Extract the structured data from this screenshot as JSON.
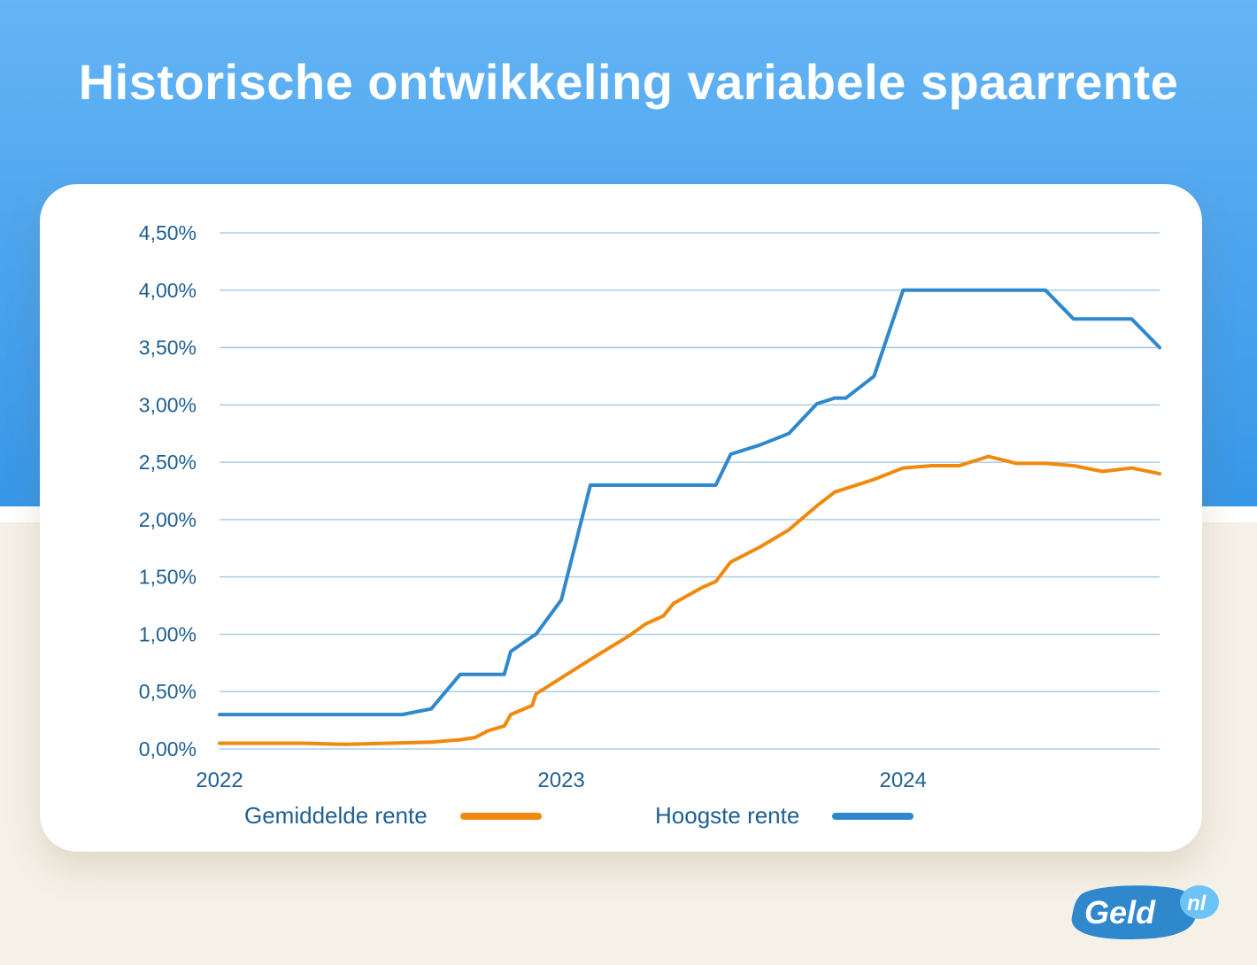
{
  "header": {
    "title": "Historische ontwikkeling variabele spaarrente"
  },
  "colors": {
    "orange": "#f08a0e",
    "blue": "#2f88cc",
    "text": "#1f5f92",
    "grid": "#a9cde8"
  },
  "chart_data": {
    "type": "line",
    "title": "Historische ontwikkeling variabele spaarrente",
    "x_range": [
      "2022-01-01",
      "2024-10-01"
    ],
    "ylim": [
      0,
      4.5
    ],
    "y_ticks": [
      {
        "value": 0,
        "label": "0,00%"
      },
      {
        "value": 0.5,
        "label": "0,50%"
      },
      {
        "value": 1.0,
        "label": "1,00%"
      },
      {
        "value": 1.5,
        "label": "1,50%"
      },
      {
        "value": 2.0,
        "label": "2,00%"
      },
      {
        "value": 2.5,
        "label": "2,50%"
      },
      {
        "value": 3.0,
        "label": "3,00%"
      },
      {
        "value": 3.5,
        "label": "3,50%"
      },
      {
        "value": 4.0,
        "label": "4,00%"
      },
      {
        "value": 4.5,
        "label": "4,50%"
      }
    ],
    "x_ticks": [
      {
        "value": "2022-01-01",
        "label": "2022"
      },
      {
        "value": "2023-01-01",
        "label": "2023"
      },
      {
        "value": "2024-01-01",
        "label": "2024"
      }
    ],
    "grid": true,
    "legend": "bottom",
    "series": [
      {
        "name": "Gemiddelde rente",
        "color": "#f08a0e",
        "points": [
          [
            "2022-01-01",
            0.05
          ],
          [
            "2022-04-01",
            0.05
          ],
          [
            "2022-05-15",
            0.04
          ],
          [
            "2022-07-01",
            0.05
          ],
          [
            "2022-08-15",
            0.06
          ],
          [
            "2022-09-15",
            0.08
          ],
          [
            "2022-10-01",
            0.1
          ],
          [
            "2022-10-15",
            0.16
          ],
          [
            "2022-11-01",
            0.2
          ],
          [
            "2022-11-08",
            0.3
          ],
          [
            "2022-12-01",
            0.38
          ],
          [
            "2022-12-05",
            0.48
          ],
          [
            "2023-01-01",
            0.62
          ],
          [
            "2023-02-01",
            0.78
          ],
          [
            "2023-03-01",
            0.92
          ],
          [
            "2023-03-15",
            0.99
          ],
          [
            "2023-04-01",
            1.09
          ],
          [
            "2023-04-20",
            1.16
          ],
          [
            "2023-05-01",
            1.27
          ],
          [
            "2023-06-01",
            1.41
          ],
          [
            "2023-06-15",
            1.46
          ],
          [
            "2023-07-01",
            1.63
          ],
          [
            "2023-08-01",
            1.76
          ],
          [
            "2023-09-01",
            1.91
          ],
          [
            "2023-10-01",
            2.12
          ],
          [
            "2023-10-20",
            2.24
          ],
          [
            "2023-12-01",
            2.35
          ],
          [
            "2024-01-01",
            2.45
          ],
          [
            "2024-02-01",
            2.47
          ],
          [
            "2024-03-01",
            2.47
          ],
          [
            "2024-04-01",
            2.55
          ],
          [
            "2024-05-01",
            2.49
          ],
          [
            "2024-06-01",
            2.49
          ],
          [
            "2024-07-01",
            2.47
          ],
          [
            "2024-08-01",
            2.42
          ],
          [
            "2024-09-01",
            2.45
          ],
          [
            "2024-10-01",
            2.4
          ]
        ]
      },
      {
        "name": "Hoogste rente",
        "color": "#2f88cc",
        "points": [
          [
            "2022-01-01",
            0.3
          ],
          [
            "2022-07-15",
            0.3
          ],
          [
            "2022-08-15",
            0.35
          ],
          [
            "2022-09-15",
            0.65
          ],
          [
            "2022-10-15",
            0.65
          ],
          [
            "2022-11-01",
            0.65
          ],
          [
            "2022-11-08",
            0.85
          ],
          [
            "2022-12-01",
            0.98
          ],
          [
            "2022-12-05",
            1.0
          ],
          [
            "2023-01-01",
            1.3
          ],
          [
            "2023-02-01",
            2.3
          ],
          [
            "2023-06-15",
            2.3
          ],
          [
            "2023-07-01",
            2.57
          ],
          [
            "2023-08-01",
            2.65
          ],
          [
            "2023-09-01",
            2.75
          ],
          [
            "2023-10-01",
            3.01
          ],
          [
            "2023-10-20",
            3.06
          ],
          [
            "2023-11-01",
            3.06
          ],
          [
            "2023-12-01",
            3.25
          ],
          [
            "2024-01-01",
            4.0
          ],
          [
            "2024-06-01",
            4.0
          ],
          [
            "2024-07-01",
            3.75
          ],
          [
            "2024-09-01",
            3.75
          ],
          [
            "2024-10-01",
            3.5
          ]
        ]
      }
    ]
  },
  "legend": {
    "items": [
      {
        "label": "Gemiddelde rente"
      },
      {
        "label": "Hoogste rente"
      }
    ]
  },
  "logo": {
    "text": "Geld",
    "suffix": "nl"
  }
}
